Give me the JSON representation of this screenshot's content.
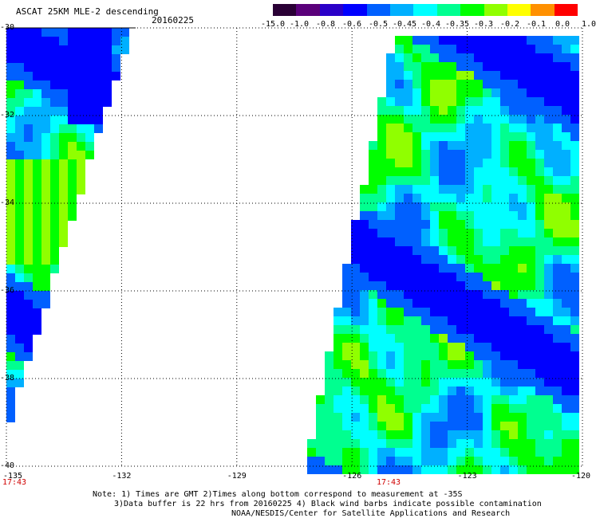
{
  "header": {
    "title": "ASCAT 25KM MLE-2 descending",
    "date": "20160225"
  },
  "colorbar": {
    "labels": [
      "-15.0",
      "-1.0",
      "-0.8",
      "-0.6",
      "-0.5",
      "-0.45",
      "-0.4",
      "-0.35",
      "-0.3",
      "-0.2",
      "-0.1",
      "0.0",
      "1.0"
    ],
    "colors": [
      "#2a0035",
      "#5a007a",
      "#2a00c8",
      "#0000ff",
      "#0060ff",
      "#00b0ff",
      "#00ffff",
      "#00ff90",
      "#00ff00",
      "#90ff00",
      "#ffff00",
      "#ff9000",
      "#ff0000"
    ]
  },
  "axes": {
    "y_labels": [
      "-30",
      "-32",
      "-34",
      "-36",
      "-38",
      "-40"
    ],
    "x_labels": [
      "-135",
      "-132",
      "-129",
      "-126",
      "-123",
      "-120"
    ],
    "time_labels": [
      "17:43",
      "17:43"
    ]
  },
  "notes": {
    "line1": "Note: 1) Times are GMT 2)Times along bottom correspond to measurement at -35S",
    "line2": "3)Data buffer is 22 hrs from 20160225 4) Black wind barbs indicate possible contamination",
    "line3": "NOAA/NESDIS/Center for Satellite Applications and Research"
  },
  "map": {
    "lat_range": [
      -40,
      -30
    ],
    "lon_range": [
      -135,
      -120
    ],
    "grid": true,
    "swaths": [
      {
        "name": "west",
        "coverage": "lon -135 to -131.7 tapering south"
      },
      {
        "name": "east",
        "coverage": "lon -126.8 to -120 widening south"
      }
    ]
  }
}
